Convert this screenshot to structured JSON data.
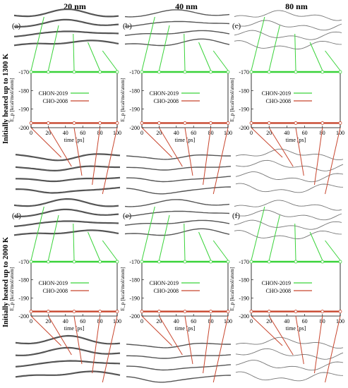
{
  "figure": {
    "column_titles": [
      "20 nm",
      "40 nm",
      "80 nm"
    ],
    "row_titles": [
      "Initially heated up to 1300 K",
      "Initially heated up to 2000 K"
    ],
    "panel_letters": [
      "(a)",
      "(b)",
      "(c)",
      "(d)",
      "(e)",
      "(f)"
    ],
    "legend": [
      "CHON-2019",
      "CHO-2008"
    ],
    "series_colors": {
      "CHON-2019": "#3ad33a",
      "CHO-2008": "#c8462e"
    },
    "xlabel": "time [ps]",
    "ylabel": "E_p [kcal/mol/atom]",
    "xticks": [
      "0",
      "20",
      "40",
      "60",
      "80",
      "100"
    ],
    "yticks": [
      "-170",
      "-180",
      "-190",
      "-200"
    ]
  },
  "chart_data": [
    {
      "panel": "(a)",
      "type": "line",
      "xlim": [
        0,
        100
      ],
      "ylim": [
        -200,
        -170
      ],
      "series": [
        {
          "name": "CHON-2019",
          "x": [
            0,
            100
          ],
          "y": [
            -170,
            -170
          ]
        },
        {
          "name": "CHO-2008",
          "x": [
            0,
            100
          ],
          "y": [
            -197.5,
            -197.5
          ]
        }
      ]
    },
    {
      "panel": "(b)",
      "type": "line",
      "xlim": [
        0,
        100
      ],
      "ylim": [
        -200,
        -170
      ],
      "series": [
        {
          "name": "CHON-2019",
          "x": [
            0,
            100
          ],
          "y": [
            -170,
            -170
          ]
        },
        {
          "name": "CHO-2008",
          "x": [
            0,
            100
          ],
          "y": [
            -197.5,
            -197.5
          ]
        }
      ]
    },
    {
      "panel": "(c)",
      "type": "line",
      "xlim": [
        0,
        100
      ],
      "ylim": [
        -200,
        -170
      ],
      "series": [
        {
          "name": "CHON-2019",
          "x": [
            0,
            100
          ],
          "y": [
            -170,
            -170
          ]
        },
        {
          "name": "CHO-2008",
          "x": [
            0,
            100
          ],
          "y": [
            -197.5,
            -197.5
          ]
        }
      ]
    },
    {
      "panel": "(d)",
      "type": "line",
      "xlim": [
        0,
        100
      ],
      "ylim": [
        -200,
        -170
      ],
      "series": [
        {
          "name": "CHON-2019",
          "x": [
            0,
            100
          ],
          "y": [
            -170,
            -170
          ]
        },
        {
          "name": "CHO-2008",
          "x": [
            0,
            100
          ],
          "y": [
            -197.5,
            -197.5
          ]
        }
      ]
    },
    {
      "panel": "(e)",
      "type": "line",
      "xlim": [
        0,
        100
      ],
      "ylim": [
        -200,
        -170
      ],
      "series": [
        {
          "name": "CHON-2019",
          "x": [
            0,
            100
          ],
          "y": [
            -170,
            -170
          ]
        },
        {
          "name": "CHO-2008",
          "x": [
            0,
            100
          ],
          "y": [
            -197.5,
            -197.5
          ]
        }
      ]
    },
    {
      "panel": "(f)",
      "type": "line",
      "xlim": [
        0,
        100
      ],
      "ylim": [
        -200,
        -170
      ],
      "series": [
        {
          "name": "CHON-2019",
          "x": [
            0,
            100
          ],
          "y": [
            -170,
            -170
          ]
        },
        {
          "name": "CHO-2008",
          "x": [
            0,
            100
          ],
          "y": [
            -197.5,
            -197.5
          ]
        }
      ]
    }
  ]
}
